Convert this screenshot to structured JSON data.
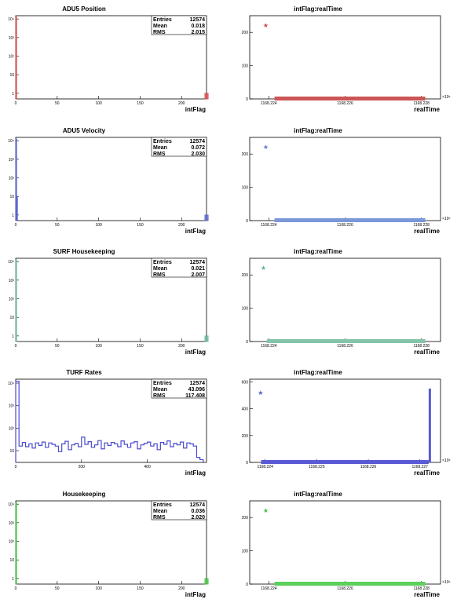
{
  "chart_data": [
    {
      "type": "bar",
      "title": "ADU5 Position",
      "xlabel": "intFlag",
      "ylabel": "",
      "log_y": true,
      "xlim": [
        0,
        230
      ],
      "ylim": [
        0.5,
        15000
      ],
      "xticks": [
        0,
        50,
        100,
        150,
        200
      ],
      "yticks": [
        1,
        10,
        100,
        1000,
        10000
      ],
      "ytick_labels": [
        "1",
        "10",
        "10²",
        "10³",
        "10⁴"
      ],
      "color": "#d94a4a",
      "stats": {
        "entries_label": "Entries",
        "entries": "12574",
        "mean_label": "Mean",
        "mean": "0.018",
        "rms_label": "RMS",
        "rms": "2.015"
      },
      "bars": [
        {
          "x": 0,
          "w": 1,
          "y": 12567
        },
        {
          "x": 228,
          "w": 4,
          "y": 1
        }
      ]
    },
    {
      "type": "scatter",
      "title": "intFlag:realTime",
      "xlabel": "realTime",
      "ylabel": "",
      "xlim": [
        1168.2235,
        1168.2285
      ],
      "ylim": [
        0,
        250
      ],
      "xticks": [
        1168.224,
        1168.226,
        1168.228
      ],
      "xtick_labels": [
        "1168.224",
        "1168.226",
        "1168.228"
      ],
      "yticks": [
        0,
        100,
        200
      ],
      "x_multiplier": "×10⁶",
      "color": "#cc5555",
      "star_color": "#cc4444",
      "stars": [
        {
          "x": 1168.22392,
          "y": 222
        }
      ],
      "band": {
        "x0": 1168.22415,
        "x1": 1168.2281,
        "y": 0
      }
    },
    {
      "type": "bar",
      "title": "ADU5 Velocity",
      "xlabel": "intFlag",
      "ylabel": "",
      "log_y": true,
      "xlim": [
        0,
        230
      ],
      "ylim": [
        0.5,
        15000
      ],
      "xticks": [
        0,
        50,
        100,
        150,
        200
      ],
      "yticks": [
        1,
        10,
        100,
        1000,
        10000
      ],
      "ytick_labels": [
        "1",
        "10",
        "10²",
        "10³",
        "10⁴"
      ],
      "color": "#5560cc",
      "stats": {
        "entries_label": "Entries",
        "entries": "12574",
        "mean_label": "Mean",
        "mean": "0.072",
        "rms_label": "RMS",
        "rms": "2.030"
      },
      "bars": [
        {
          "x": 0,
          "w": 1,
          "y": 12560
        },
        {
          "x": 1,
          "w": 1,
          "y": 10
        },
        {
          "x": 228,
          "w": 4,
          "y": 1
        }
      ]
    },
    {
      "type": "scatter",
      "title": "intFlag:realTime",
      "xlabel": "realTime",
      "ylabel": "",
      "xlim": [
        1168.2235,
        1168.2285
      ],
      "ylim": [
        0,
        250
      ],
      "xticks": [
        1168.224,
        1168.226,
        1168.228
      ],
      "xtick_labels": [
        "1168.224",
        "1168.226",
        "1168.228"
      ],
      "yticks": [
        0,
        100,
        200
      ],
      "x_multiplier": "×10⁶",
      "color": "#7a98d8",
      "star_color": "#5b78cc",
      "stars": [
        {
          "x": 1168.22392,
          "y": 222
        }
      ],
      "band": {
        "x0": 1168.22415,
        "x1": 1168.2281,
        "y": 0
      }
    },
    {
      "type": "bar",
      "title": "SURF Housekeeping",
      "xlabel": "intFlag",
      "ylabel": "",
      "log_y": true,
      "xlim": [
        0,
        230
      ],
      "ylim": [
        0.5,
        15000
      ],
      "xticks": [
        0,
        50,
        100,
        150,
        200
      ],
      "yticks": [
        1,
        10,
        100,
        1000,
        10000
      ],
      "ytick_labels": [
        "1",
        "10",
        "10²",
        "10³",
        "10⁴"
      ],
      "color": "#6bb89c",
      "stats": {
        "entries_label": "Entries",
        "entries": "12574",
        "mean_label": "Mean",
        "mean": "0.021",
        "rms_label": "RMS",
        "rms": "2.007"
      },
      "bars": [
        {
          "x": 0,
          "w": 1,
          "y": 12566
        },
        {
          "x": 228,
          "w": 4,
          "y": 1
        }
      ]
    },
    {
      "type": "scatter",
      "title": "intFlag:realTime",
      "xlabel": "realTime",
      "ylabel": "",
      "xlim": [
        1168.2235,
        1168.2285
      ],
      "ylim": [
        0,
        250
      ],
      "xticks": [
        1168.224,
        1168.226,
        1168.228
      ],
      "xtick_labels": [
        "1168.224",
        "1168.226",
        "1168.228"
      ],
      "yticks": [
        0,
        100,
        200
      ],
      "x_multiplier": "",
      "color": "#86c4aa",
      "star_color": "#5fae90",
      "stars": [
        {
          "x": 1168.22386,
          "y": 222
        }
      ],
      "band": {
        "x0": 1168.22395,
        "x1": 1168.2281,
        "y": 0
      }
    },
    {
      "type": "bar",
      "title": "TURF Rates",
      "xlabel": "intFlag",
      "ylabel": "",
      "log_y": true,
      "xlim": [
        0,
        580
      ],
      "ylim": [
        3,
        15000
      ],
      "xticks": [
        0,
        200,
        400
      ],
      "yticks": [
        10,
        100,
        1000,
        10000
      ],
      "ytick_labels": [
        "10",
        "10²",
        "10³",
        "10⁴"
      ],
      "color": "#4a4ad0",
      "stats": {
        "entries_label": "Entries",
        "entries": "12574",
        "mean_label": "Mean",
        "mean": "43.096",
        "rms_label": "RMS",
        "rms": "117.408"
      },
      "hist_line": {
        "x0": 0,
        "bin": 10,
        "first": 12000,
        "y": [
          12000,
          16,
          23,
          15,
          20,
          13,
          22,
          17,
          24,
          14,
          22,
          19,
          16,
          9,
          20,
          26,
          11,
          18,
          21,
          15,
          40,
          19,
          25,
          14,
          18,
          28,
          12,
          22,
          17,
          23,
          20,
          15,
          27,
          19,
          14,
          22,
          25,
          12,
          18,
          21,
          24,
          16,
          20,
          11,
          23,
          19,
          27,
          15,
          21,
          18,
          24,
          13,
          22,
          20,
          16,
          5,
          4
        ]
      }
    },
    {
      "type": "scatter",
      "title": "intFlag:realTime",
      "xlabel": "realTime",
      "ylabel": "",
      "xlim": [
        1168.2237,
        1168.2274
      ],
      "ylim": [
        0,
        620
      ],
      "xticks": [
        1168.224,
        1168.225,
        1168.226,
        1168.227
      ],
      "xtick_labels": [
        "1168.224",
        "1168.225",
        "1168.226",
        "1168.227"
      ],
      "yticks": [
        0,
        200,
        400,
        600
      ],
      "x_multiplier": "×10⁶",
      "color": "#5a5ad6",
      "star_color": "#4a5ccc",
      "stars": [
        {
          "x": 1168.22391,
          "y": 520
        }
      ],
      "band": {
        "x0": 1168.22392,
        "x1": 1168.22717,
        "y": 0
      },
      "spike": {
        "x": 1168.22717,
        "w": 3e-05,
        "y": 550
      }
    },
    {
      "type": "bar",
      "title": "Housekeeping",
      "xlabel": "intFlag",
      "ylabel": "",
      "log_y": true,
      "xlim": [
        0,
        230
      ],
      "ylim": [
        0.5,
        15000
      ],
      "xticks": [
        0,
        50,
        100,
        150,
        200
      ],
      "yticks": [
        1,
        10,
        100,
        1000,
        10000
      ],
      "ytick_labels": [
        "1",
        "10",
        "10²",
        "10³",
        "10⁴"
      ],
      "color": "#44c444",
      "stats": {
        "entries_label": "Entries",
        "entries": "12574",
        "mean_label": "Mean",
        "mean": "0.036",
        "rms_label": "RMS",
        "rms": "2.020"
      },
      "bars": [
        {
          "x": 0,
          "w": 1,
          "y": 12566
        },
        {
          "x": 228,
          "w": 4,
          "y": 1
        }
      ]
    },
    {
      "type": "scatter",
      "title": "intFlag:realTime",
      "xlabel": "realTime",
      "ylabel": "",
      "xlim": [
        1168.2235,
        1168.2285
      ],
      "ylim": [
        0,
        250
      ],
      "xticks": [
        1168.224,
        1168.226,
        1168.228
      ],
      "xtick_labels": [
        "1168.224",
        "1168.226",
        "1168.228"
      ],
      "yticks": [
        0,
        100,
        200
      ],
      "x_multiplier": "×10⁶",
      "color": "#5cd05c",
      "star_color": "#44bb44",
      "stars": [
        {
          "x": 1168.22392,
          "y": 222
        }
      ],
      "band": {
        "x0": 1168.22415,
        "x1": 1168.2281,
        "y": 0
      }
    }
  ]
}
